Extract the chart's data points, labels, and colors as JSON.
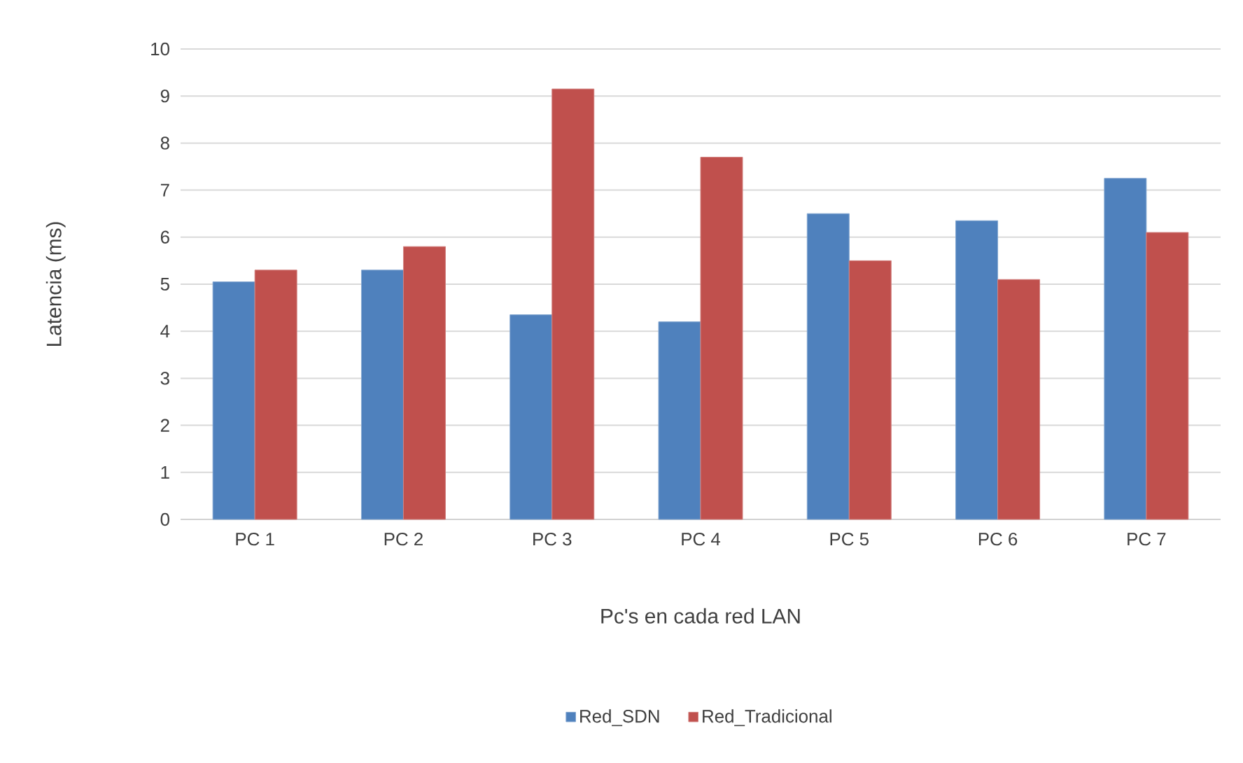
{
  "chart_data": {
    "type": "bar",
    "xlabel": "Pc's en cada  red  LAN",
    "ylabel": "Latencia  (ms)",
    "categories": [
      "PC 1",
      "PC 2",
      "PC 3",
      "PC 4",
      "PC 5",
      "PC 6",
      "PC 7"
    ],
    "series": [
      {
        "name": "Red_SDN",
        "color": "#4f81bd",
        "values": [
          5.05,
          5.3,
          4.35,
          4.2,
          6.5,
          6.35,
          7.25
        ]
      },
      {
        "name": "Red_Tradicional",
        "color": "#c0504d",
        "values": [
          5.3,
          5.8,
          9.15,
          7.7,
          5.5,
          5.1,
          6.1
        ]
      }
    ],
    "ylim": [
      0,
      10
    ],
    "yticks": [
      0,
      1,
      2,
      3,
      4,
      5,
      6,
      7,
      8,
      9,
      10
    ],
    "grid": "y",
    "legend": "bottom"
  }
}
